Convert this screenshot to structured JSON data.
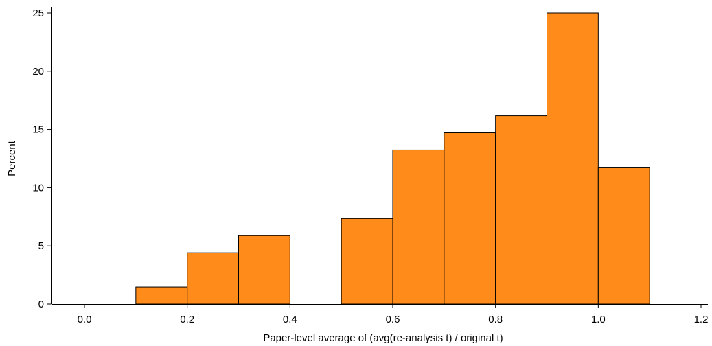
{
  "chart_data": {
    "type": "bar",
    "title": "",
    "xlabel": "Paper-level average of (avg(re-analysis t) / original t)",
    "ylabel": "Percent",
    "xlim": [
      0.0,
      1.2
    ],
    "ylim": [
      0,
      25
    ],
    "xticks": [
      "0.0",
      "0.2",
      "0.4",
      "0.6",
      "0.8",
      "1.0",
      "1.2"
    ],
    "xtick_values": [
      0.0,
      0.2,
      0.4,
      0.6,
      0.8,
      1.0,
      1.2
    ],
    "yticks": [
      "0",
      "5",
      "10",
      "15",
      "20",
      "25"
    ],
    "ytick_values": [
      0,
      5,
      10,
      15,
      20,
      25
    ],
    "bins": [
      {
        "x0": 0.1,
        "x1": 0.2,
        "value": 1.47
      },
      {
        "x0": 0.2,
        "x1": 0.3,
        "value": 4.41
      },
      {
        "x0": 0.3,
        "x1": 0.4,
        "value": 5.88
      },
      {
        "x0": 0.5,
        "x1": 0.6,
        "value": 7.35
      },
      {
        "x0": 0.6,
        "x1": 0.7,
        "value": 13.24
      },
      {
        "x0": 0.7,
        "x1": 0.8,
        "value": 14.71
      },
      {
        "x0": 0.8,
        "x1": 0.9,
        "value": 16.18
      },
      {
        "x0": 0.9,
        "x1": 1.0,
        "value": 25.0
      },
      {
        "x0": 1.0,
        "x1": 1.1,
        "value": 11.76
      }
    ],
    "bar_color": "#FF8C1A",
    "bar_edge_color": "#000000",
    "grid": false,
    "legend": "none"
  }
}
